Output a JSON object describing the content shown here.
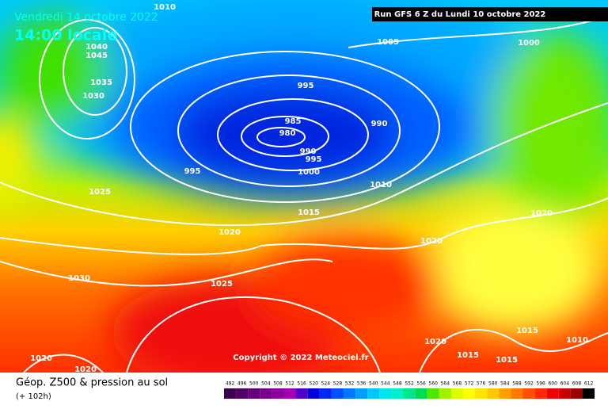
{
  "header": {
    "date": "Vendredi 14 octobre 2022",
    "time": "14:00 locale",
    "run": "Run GFS 6 Z du Lundi 10 octobre 2022"
  },
  "copyright": "Copyright © 2022 Meteociel.fr",
  "isobar_labels": [
    1010,
    1040,
    1045,
    1035,
    1030,
    995,
    985,
    980,
    990,
    990,
    995,
    1000,
    995,
    1005,
    1000,
    1010,
    1025,
    1015,
    1020,
    1020,
    1020,
    1030,
    1025,
    1015,
    1010,
    1020,
    1015,
    1015,
    1020,
    1020
  ],
  "legend": {
    "title": "Géop. Z500 & pression au sol",
    "lead": "(+ 102h)",
    "levels": [
      492,
      496,
      500,
      504,
      508,
      512,
      516,
      520,
      524,
      528,
      532,
      536,
      540,
      544,
      548,
      552,
      556,
      560,
      564,
      568,
      572,
      576,
      580,
      584,
      588,
      592,
      596,
      600,
      604,
      608,
      612
    ],
    "colors": [
      "#3c0050",
      "#500064",
      "#640078",
      "#78008c",
      "#8c00a0",
      "#a000b4",
      "#5000c8",
      "#0000dc",
      "#0028f0",
      "#0050ff",
      "#0078ff",
      "#00a0ff",
      "#00c8ff",
      "#00e6f0",
      "#00f0c8",
      "#00e68c",
      "#00dc50",
      "#50e600",
      "#a0f000",
      "#dcff00",
      "#ffff00",
      "#ffe600",
      "#ffc800",
      "#ffa000",
      "#ff7800",
      "#ff5000",
      "#ff2800",
      "#f00000",
      "#c80000",
      "#960000",
      "#000000"
    ]
  }
}
